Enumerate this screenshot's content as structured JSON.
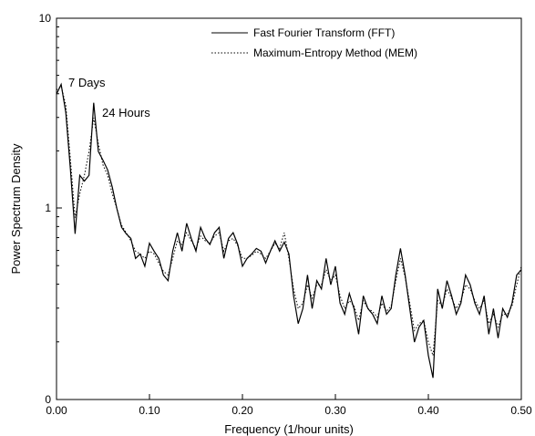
{
  "chart_data": {
    "type": "line",
    "xlabel": "Frequency (1/hour units)",
    "ylabel": "Power Spectrum Density",
    "x_ticks": [
      "0.00",
      "0.10",
      "0.20",
      "0.30",
      "0.40",
      "0.50"
    ],
    "x_tick_values": [
      0.0,
      0.1,
      0.2,
      0.3,
      0.4,
      0.5
    ],
    "y_ticks": [
      "0",
      "1",
      "10"
    ],
    "xlim": [
      0.0,
      0.5
    ],
    "y_scale": "log",
    "y_display_range": [
      0.1,
      10
    ],
    "grid": false,
    "legend_position": "top-right",
    "annotations": [
      {
        "text": "7 Days",
        "x": 0.006,
        "y": 4.5
      },
      {
        "text": "24 Hours",
        "x": 0.042,
        "y": 3.2
      }
    ],
    "series": [
      {
        "name": "Fast Fourier Transform (FFT)",
        "style": "solid",
        "x": [
          0.0,
          0.005,
          0.01,
          0.015,
          0.02,
          0.025,
          0.03,
          0.035,
          0.04,
          0.045,
          0.05,
          0.055,
          0.06,
          0.065,
          0.07,
          0.075,
          0.08,
          0.085,
          0.09,
          0.095,
          0.1,
          0.105,
          0.11,
          0.115,
          0.12,
          0.125,
          0.13,
          0.135,
          0.14,
          0.145,
          0.15,
          0.155,
          0.16,
          0.165,
          0.17,
          0.175,
          0.18,
          0.185,
          0.19,
          0.195,
          0.2,
          0.205,
          0.21,
          0.215,
          0.22,
          0.225,
          0.23,
          0.235,
          0.24,
          0.245,
          0.25,
          0.255,
          0.26,
          0.265,
          0.27,
          0.275,
          0.28,
          0.285,
          0.29,
          0.295,
          0.3,
          0.305,
          0.31,
          0.315,
          0.32,
          0.325,
          0.33,
          0.335,
          0.34,
          0.345,
          0.35,
          0.355,
          0.36,
          0.365,
          0.37,
          0.375,
          0.38,
          0.385,
          0.39,
          0.395,
          0.4,
          0.405,
          0.41,
          0.415,
          0.42,
          0.425,
          0.43,
          0.435,
          0.44,
          0.445,
          0.45,
          0.455,
          0.46,
          0.465,
          0.47,
          0.475,
          0.48,
          0.485,
          0.49,
          0.495,
          0.5
        ],
        "y": [
          4.0,
          4.5,
          3.2,
          1.6,
          0.74,
          1.5,
          1.4,
          1.5,
          3.6,
          2.0,
          1.8,
          1.6,
          1.3,
          1.0,
          0.8,
          0.74,
          0.7,
          0.55,
          0.58,
          0.5,
          0.66,
          0.6,
          0.55,
          0.45,
          0.42,
          0.6,
          0.75,
          0.6,
          0.84,
          0.7,
          0.6,
          0.8,
          0.7,
          0.65,
          0.75,
          0.8,
          0.55,
          0.7,
          0.75,
          0.65,
          0.5,
          0.55,
          0.58,
          0.62,
          0.6,
          0.52,
          0.6,
          0.68,
          0.6,
          0.67,
          0.58,
          0.35,
          0.25,
          0.3,
          0.45,
          0.3,
          0.42,
          0.38,
          0.55,
          0.4,
          0.5,
          0.32,
          0.28,
          0.36,
          0.3,
          0.22,
          0.35,
          0.3,
          0.28,
          0.25,
          0.35,
          0.28,
          0.3,
          0.45,
          0.62,
          0.45,
          0.3,
          0.2,
          0.24,
          0.26,
          0.17,
          0.13,
          0.38,
          0.3,
          0.42,
          0.35,
          0.28,
          0.32,
          0.45,
          0.4,
          0.32,
          0.28,
          0.35,
          0.22,
          0.3,
          0.21,
          0.3,
          0.27,
          0.32,
          0.45,
          0.48
        ]
      },
      {
        "name": "Maximum-Entropy Method (MEM)",
        "style": "dotted",
        "x": [
          0.0,
          0.005,
          0.01,
          0.015,
          0.02,
          0.025,
          0.03,
          0.035,
          0.04,
          0.045,
          0.05,
          0.055,
          0.06,
          0.065,
          0.07,
          0.075,
          0.08,
          0.085,
          0.09,
          0.095,
          0.1,
          0.105,
          0.11,
          0.115,
          0.12,
          0.125,
          0.13,
          0.135,
          0.14,
          0.145,
          0.15,
          0.155,
          0.16,
          0.165,
          0.17,
          0.175,
          0.18,
          0.185,
          0.19,
          0.195,
          0.2,
          0.205,
          0.21,
          0.215,
          0.22,
          0.225,
          0.23,
          0.235,
          0.24,
          0.245,
          0.25,
          0.255,
          0.26,
          0.265,
          0.27,
          0.275,
          0.28,
          0.285,
          0.29,
          0.295,
          0.3,
          0.305,
          0.31,
          0.315,
          0.32,
          0.325,
          0.33,
          0.335,
          0.34,
          0.345,
          0.35,
          0.355,
          0.36,
          0.365,
          0.37,
          0.375,
          0.38,
          0.385,
          0.39,
          0.395,
          0.4,
          0.405,
          0.41,
          0.415,
          0.42,
          0.425,
          0.43,
          0.435,
          0.44,
          0.445,
          0.45,
          0.455,
          0.46,
          0.465,
          0.47,
          0.475,
          0.48,
          0.485,
          0.49,
          0.495,
          0.5
        ],
        "y": [
          4.2,
          4.4,
          3.5,
          1.8,
          0.9,
          1.2,
          1.5,
          2.0,
          3.0,
          2.2,
          1.7,
          1.5,
          1.2,
          1.0,
          0.82,
          0.75,
          0.68,
          0.6,
          0.58,
          0.55,
          0.6,
          0.58,
          0.52,
          0.47,
          0.45,
          0.55,
          0.68,
          0.65,
          0.75,
          0.68,
          0.62,
          0.72,
          0.68,
          0.66,
          0.72,
          0.75,
          0.6,
          0.68,
          0.7,
          0.64,
          0.55,
          0.55,
          0.57,
          0.6,
          0.58,
          0.55,
          0.6,
          0.66,
          0.62,
          0.75,
          0.55,
          0.38,
          0.3,
          0.32,
          0.4,
          0.34,
          0.4,
          0.4,
          0.48,
          0.42,
          0.45,
          0.35,
          0.3,
          0.33,
          0.31,
          0.26,
          0.33,
          0.3,
          0.29,
          0.27,
          0.32,
          0.29,
          0.31,
          0.42,
          0.55,
          0.44,
          0.32,
          0.23,
          0.25,
          0.26,
          0.2,
          0.17,
          0.33,
          0.31,
          0.38,
          0.34,
          0.3,
          0.33,
          0.4,
          0.38,
          0.33,
          0.3,
          0.33,
          0.25,
          0.28,
          0.24,
          0.28,
          0.28,
          0.31,
          0.4,
          0.5
        ]
      }
    ]
  }
}
